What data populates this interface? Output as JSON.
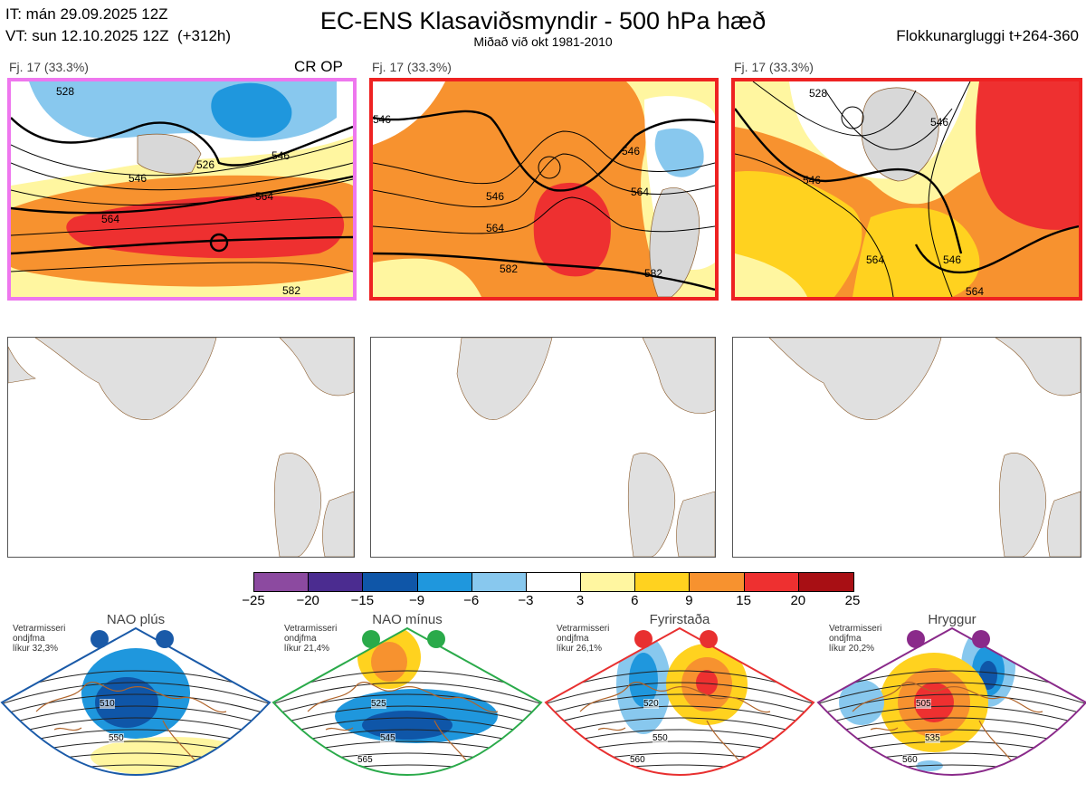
{
  "header": {
    "it_line": "IT: mán 29.09.2025 12Z",
    "vt_line": "VT: sun 12.10.2025 12Z  (+312h)",
    "title": "EC-ENS Klasaviðsmyndir - 500 hPa hæð",
    "subtitle": "Miðað við okt 1981-2010",
    "window": "Flokkunargluggi t+264-360"
  },
  "panels": [
    {
      "label": "Fj. 17 (33.3%)",
      "tag": "CR OP",
      "border_color": "#ee77ee",
      "contours": [
        "528",
        "546",
        "564",
        "526",
        "546",
        "564",
        "582"
      ]
    },
    {
      "label": "Fj. 17 (33.3%)",
      "tag": "",
      "border_color": "#ee2222",
      "contours": [
        "546",
        "546",
        "564",
        "546",
        "564",
        "582",
        "582"
      ]
    },
    {
      "label": "Fj. 17 (33.3%)",
      "tag": "",
      "border_color": "#ee2222",
      "contours": [
        "528",
        "546",
        "546",
        "564",
        "546",
        "564"
      ]
    }
  ],
  "colorbar": {
    "ticks": [
      "−25",
      "−20",
      "−15",
      "−9",
      "−6",
      "−3",
      "3",
      "6",
      "9",
      "15",
      "20",
      "25"
    ],
    "colors": [
      "#8c4aa0",
      "#4b2c90",
      "#0f56a8",
      "#1f97dd",
      "#88c8ee",
      "#ffffff",
      "#fff6a0",
      "#ffd21f",
      "#f7922f",
      "#ee3030",
      "#a80f14"
    ]
  },
  "regimes": [
    {
      "name": "NAO plús",
      "prob_text": "Vetrarmisseri\nondjfma\nlíkur 32,3%",
      "color": "#1a5aa8",
      "contours": [
        "510",
        "550"
      ]
    },
    {
      "name": "NAO mínus",
      "prob_text": "Vetrarmisseri\nondjfma\nlíkur 21,4%",
      "color": "#2aaa4a",
      "contours": [
        "525",
        "545",
        "565"
      ]
    },
    {
      "name": "Fyrirstaða",
      "prob_text": "Vetrarmisseri\nondjfma\nlíkur 26,1%",
      "color": "#e83030",
      "contours": [
        "520",
        "550",
        "560"
      ]
    },
    {
      "name": "Hryggur",
      "prob_text": "Vetrarmisseri\nondjfma\nlíkur 20,2%",
      "color": "#8a2a8a",
      "contours": [
        "505",
        "535",
        "560"
      ]
    }
  ]
}
